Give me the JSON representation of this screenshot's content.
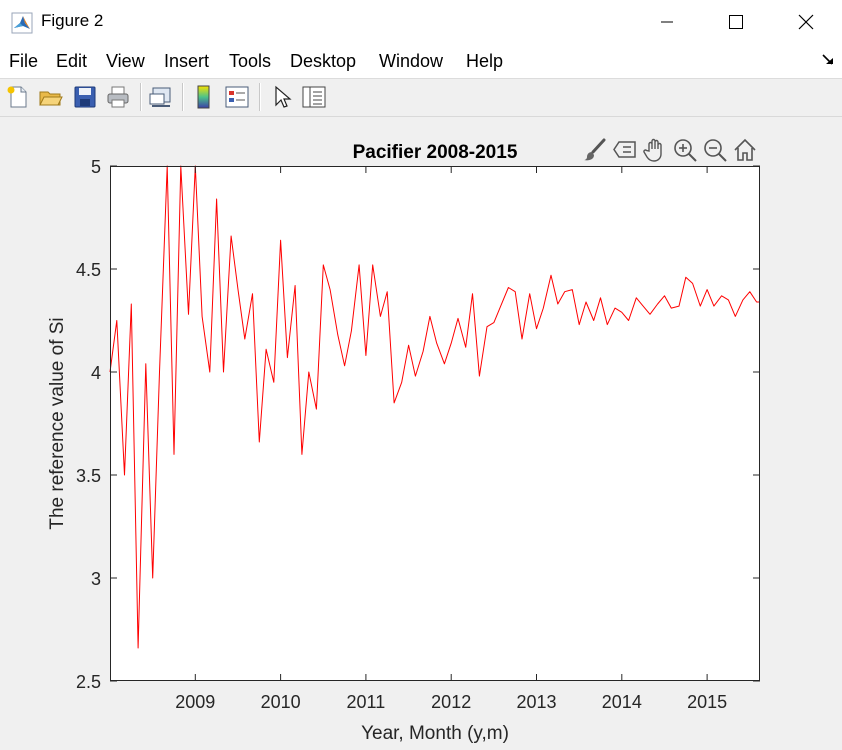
{
  "window": {
    "title": "Figure 2"
  },
  "menu": [
    "File",
    "Edit",
    "View",
    "Insert",
    "Tools",
    "Desktop",
    "Window",
    "Help"
  ],
  "toolbar": [
    "new-figure",
    "open-file",
    "save",
    "print",
    "link-plot",
    "insert-colorbar",
    "insert-legend",
    "edit-plot",
    "property-inspector"
  ],
  "axes_toolbar": [
    "brush-icon",
    "data-tips-icon",
    "pan-hand-icon",
    "zoom-in-icon",
    "zoom-out-icon",
    "home-restore-icon"
  ],
  "colors": {
    "line": "#ff0000",
    "axes": "#262626",
    "background": "#f0f0f0"
  },
  "chart_data": {
    "type": "line",
    "title": "Pacifier 2008-2015",
    "xlabel": "Year, Month (y,m)",
    "ylabel": "The reference value of Si",
    "xlim": [
      2008.0,
      2015.62
    ],
    "ylim": [
      2.5,
      5
    ],
    "xticks": [
      2009,
      2010,
      2011,
      2012,
      2013,
      2014,
      2015
    ],
    "yticks": [
      2.5,
      3,
      3.5,
      4,
      4.5,
      5
    ],
    "ytick_labels": [
      "2.5",
      "3",
      "3.5",
      "4",
      "4.5",
      "5"
    ],
    "grid": false,
    "series": [
      {
        "color": "#ff0000",
        "x": [
          2008.0,
          2008.08,
          2008.17,
          2008.25,
          2008.33,
          2008.42,
          2008.5,
          2008.58,
          2008.67,
          2008.75,
          2008.83,
          2008.92,
          2009.0,
          2009.08,
          2009.17,
          2009.25,
          2009.33,
          2009.42,
          2009.5,
          2009.58,
          2009.67,
          2009.75,
          2009.83,
          2009.92,
          2010.0,
          2010.08,
          2010.17,
          2010.25,
          2010.33,
          2010.42,
          2010.5,
          2010.58,
          2010.67,
          2010.75,
          2010.83,
          2010.92,
          2011.0,
          2011.08,
          2011.17,
          2011.25,
          2011.33,
          2011.42,
          2011.5,
          2011.58,
          2011.67,
          2011.75,
          2011.83,
          2011.92,
          2012.0,
          2012.08,
          2012.17,
          2012.25,
          2012.33,
          2012.42,
          2012.5,
          2012.58,
          2012.67,
          2012.75,
          2012.83,
          2012.92,
          2013.0,
          2013.08,
          2013.17,
          2013.25,
          2013.33,
          2013.42,
          2013.5,
          2013.58,
          2013.67,
          2013.75,
          2013.83,
          2013.92,
          2014.0,
          2014.08,
          2014.17,
          2014.25,
          2014.33,
          2014.42,
          2014.5,
          2014.58,
          2014.67,
          2014.75,
          2014.83,
          2014.92,
          2015.0,
          2015.08,
          2015.17,
          2015.25,
          2015.33,
          2015.42,
          2015.5,
          2015.58,
          2015.62
        ],
        "y": [
          4.0,
          4.25,
          3.5,
          4.33,
          2.66,
          4.04,
          3.0,
          4.0,
          5.0,
          3.6,
          5.06,
          4.28,
          5.0,
          4.27,
          4.0,
          4.84,
          4.0,
          4.66,
          4.4,
          4.16,
          4.38,
          3.66,
          4.11,
          3.95,
          4.64,
          4.07,
          4.42,
          3.6,
          4.0,
          3.82,
          4.52,
          4.4,
          4.18,
          4.03,
          4.2,
          4.52,
          4.08,
          4.52,
          4.27,
          4.39,
          3.85,
          3.95,
          4.13,
          3.98,
          4.1,
          4.27,
          4.14,
          4.04,
          4.14,
          4.26,
          4.12,
          4.38,
          3.98,
          4.22,
          4.24,
          4.32,
          4.41,
          4.39,
          4.16,
          4.38,
          4.21,
          4.31,
          4.47,
          4.33,
          4.39,
          4.4,
          4.23,
          4.34,
          4.25,
          4.36,
          4.23,
          4.31,
          4.29,
          4.25,
          4.36,
          4.32,
          4.28,
          4.33,
          4.37,
          4.31,
          4.32,
          4.46,
          4.43,
          4.32,
          4.4,
          4.32,
          4.37,
          4.35,
          4.27,
          4.35,
          4.39,
          4.34,
          4.34
        ]
      }
    ]
  }
}
